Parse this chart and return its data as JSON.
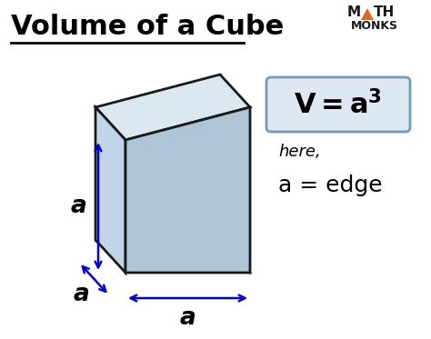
{
  "title": "Volume of a Cube",
  "bg_color": "#ffffff",
  "title_color": "#000000",
  "title_fontsize": 22,
  "cube_top_color": "#dce8f0",
  "cube_left_color": "#c2d5e8",
  "cube_right_color": "#aec5d8",
  "cube_edge_color": "#1a1a1a",
  "arrow_color": "#0000cc",
  "formula_box_color": "#dde8f2",
  "formula_box_edge": "#7799bb",
  "here_text": "here,",
  "edge_text": "a = edge",
  "label_a": "a",
  "mathmonks_color": "#1a1a1a",
  "triangle_color": "#e06820"
}
